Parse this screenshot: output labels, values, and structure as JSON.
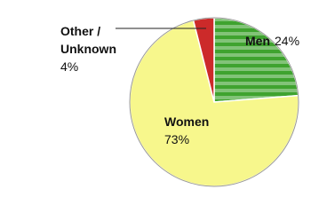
{
  "chart_data": {
    "type": "pie",
    "categories": [
      "Men",
      "Women",
      "Other / Unknown"
    ],
    "values": [
      24,
      73,
      4
    ],
    "value_labels": [
      "24%",
      "73%",
      "4%"
    ],
    "colors": [
      "#3fa32f",
      "#f7f78c",
      "#cc2a2a"
    ]
  }
}
